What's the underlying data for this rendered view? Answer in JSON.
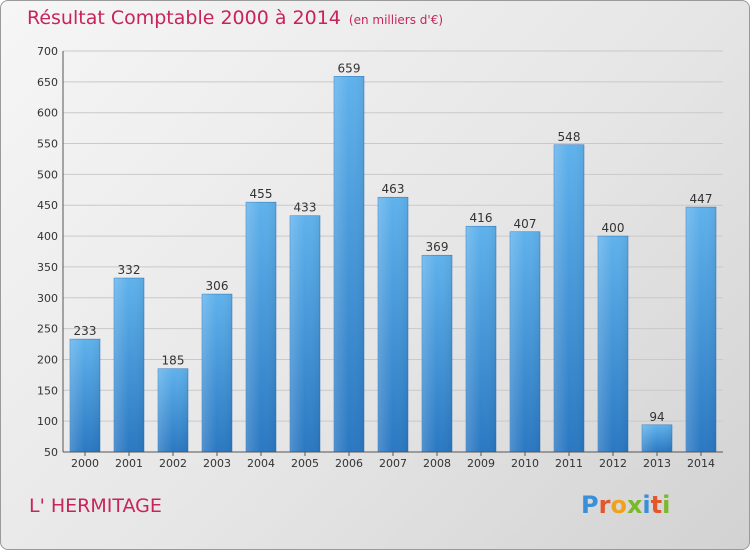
{
  "chart_data": {
    "type": "bar",
    "title": "Résultat Comptable 2000 à 2014",
    "unit_label": "(en milliers d'€)",
    "categories": [
      "2000",
      "2001",
      "2002",
      "2003",
      "2004",
      "2005",
      "2006",
      "2007",
      "2008",
      "2009",
      "2010",
      "2011",
      "2012",
      "2013",
      "2014"
    ],
    "values": [
      233,
      332,
      185,
      306,
      455,
      433,
      659,
      463,
      369,
      416,
      407,
      548,
      400,
      94,
      447
    ],
    "ylim": [
      50,
      700
    ],
    "yticks": [
      50,
      100,
      150,
      200,
      250,
      300,
      350,
      400,
      450,
      500,
      550,
      600,
      650,
      700
    ],
    "xlabel": "",
    "ylabel": "",
    "grid": true,
    "bar_color": "#3d8fd6"
  },
  "footer": {
    "town": "L' HERMITAGE",
    "logo_letters": [
      {
        "ch": "P",
        "color": "#3a8fd8"
      },
      {
        "ch": "r",
        "color": "#e2572b"
      },
      {
        "ch": "o",
        "color": "#f0a21d"
      },
      {
        "ch": "x",
        "color": "#7ab929"
      },
      {
        "ch": "i",
        "color": "#3a8fd8"
      },
      {
        "ch": "t",
        "color": "#e2572b"
      },
      {
        "ch": "i",
        "color": "#7ab929"
      }
    ]
  }
}
